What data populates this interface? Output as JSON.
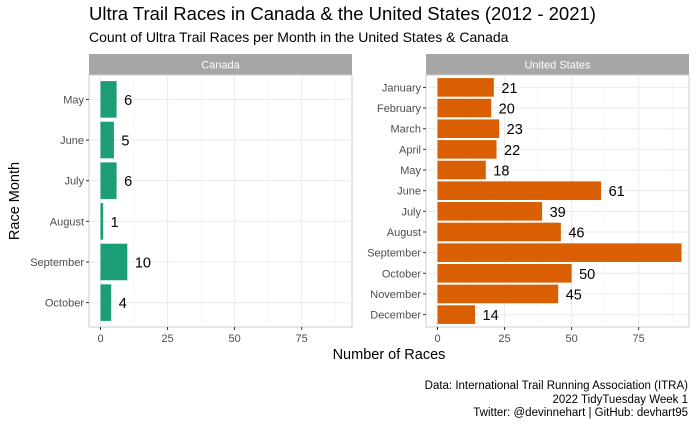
{
  "title": "Ultra Trail Races in Canada & the United States (2012 - 2021)",
  "subtitle": "Count of Ultra Trail Races per Month in the United States & Canada",
  "caption": [
    "Data: International Trail Running Association (ITRA)",
    "2022 TidyTuesday Week 1",
    "Twitter: @devinnehart | GitHub: devhart95"
  ],
  "colors": {
    "canada": "#1b9e77",
    "united_states": "#d95f02",
    "strip": "#a6a6a6",
    "grid": "#ebebeb"
  },
  "chart_data": [
    {
      "type": "bar",
      "orientation": "horizontal",
      "panel": "Canada",
      "categories": [
        "May",
        "June",
        "July",
        "August",
        "September",
        "October"
      ],
      "values": [
        6,
        5,
        6,
        1,
        10,
        4
      ],
      "xlabel": "Number of Races",
      "ylabel": "Race Month",
      "xlim": [
        0,
        90
      ],
      "xticks": [
        0,
        25,
        50,
        75
      ]
    },
    {
      "type": "bar",
      "orientation": "horizontal",
      "panel": "United States",
      "categories": [
        "January",
        "February",
        "March",
        "April",
        "May",
        "June",
        "July",
        "August",
        "September",
        "October",
        "November",
        "December"
      ],
      "values": [
        21,
        20,
        23,
        22,
        18,
        61,
        39,
        46,
        91,
        50,
        45,
        14
      ],
      "xlabel": "Number of Races",
      "ylabel": "Race Month",
      "xlim": [
        0,
        90
      ],
      "xticks": [
        0,
        25,
        50,
        75
      ]
    }
  ]
}
